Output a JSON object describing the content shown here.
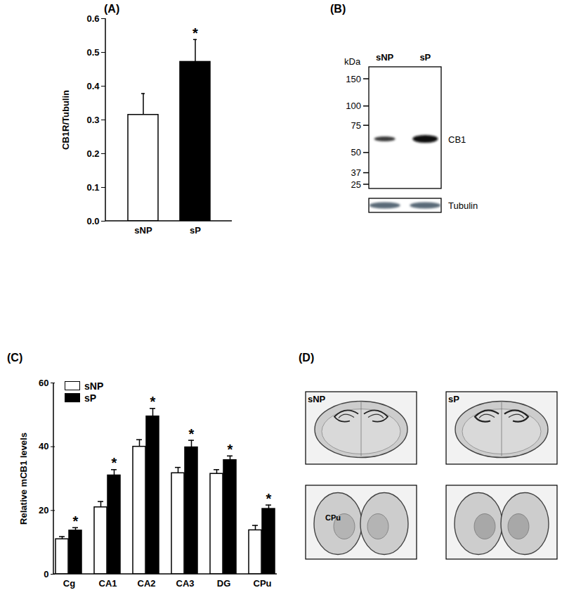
{
  "chart_data": [
    {
      "type": "bar",
      "title": "(A)",
      "categories": [
        "sNP",
        "sP"
      ],
      "values": [
        0.315,
        0.472
      ],
      "errors": [
        0.063,
        0.066
      ],
      "colors": [
        "#ffffff",
        "#000000"
      ],
      "ylabel": "CB1R/Tubulin",
      "ylim": [
        0,
        0.6
      ],
      "yticks": [
        {
          "value": 0,
          "label": "0.0"
        },
        0.1,
        0.2,
        0.3,
        0.4,
        0.5,
        0.6
      ],
      "grid": false,
      "annotations": [
        {
          "category": "sP",
          "text": "*"
        }
      ]
    },
    {
      "type": "bar",
      "title": "(C)",
      "categories": [
        "Cg",
        "CA1",
        "CA2",
        "CA3",
        "DG",
        "CPu"
      ],
      "series": [
        {
          "name": "sNP",
          "color": "#ffffff",
          "values": [
            11,
            21,
            40,
            31.7,
            31.5,
            13.8
          ],
          "errors": [
            0.8,
            1.8,
            2.2,
            1.8,
            1.3,
            1.5
          ]
        },
        {
          "name": "sP",
          "color": "#000000",
          "values": [
            13.7,
            31,
            49.5,
            39.8,
            35.8,
            20.5
          ],
          "errors": [
            0.9,
            1.8,
            2.5,
            2.2,
            1.3,
            1.2
          ]
        }
      ],
      "ylabel": "Relative mCB1 levels",
      "ylim": [
        0,
        60
      ],
      "yticks": [
        0,
        20,
        40,
        60
      ],
      "grid": false,
      "legend": "top-left",
      "annotations": [
        {
          "category": "Cg",
          "series": "sP",
          "text": "*"
        },
        {
          "category": "CA1",
          "series": "sP",
          "text": "*"
        },
        {
          "category": "CA2",
          "series": "sP",
          "text": "*"
        },
        {
          "category": "CA3",
          "series": "sP",
          "text": "*"
        },
        {
          "category": "DG",
          "series": "sP",
          "text": "*"
        },
        {
          "category": "CPu",
          "series": "sP",
          "text": "*"
        }
      ]
    }
  ],
  "blot": {
    "title": "(B)",
    "unit": "kDa",
    "lanes": [
      "sNP",
      "sP"
    ],
    "markers": [
      150,
      100,
      75,
      50,
      37,
      25
    ],
    "bands": [
      "CB1",
      "Tubulin"
    ]
  },
  "sections": {
    "title": "(D)",
    "groups": [
      "sNP",
      "sP"
    ],
    "region": "CPu"
  }
}
